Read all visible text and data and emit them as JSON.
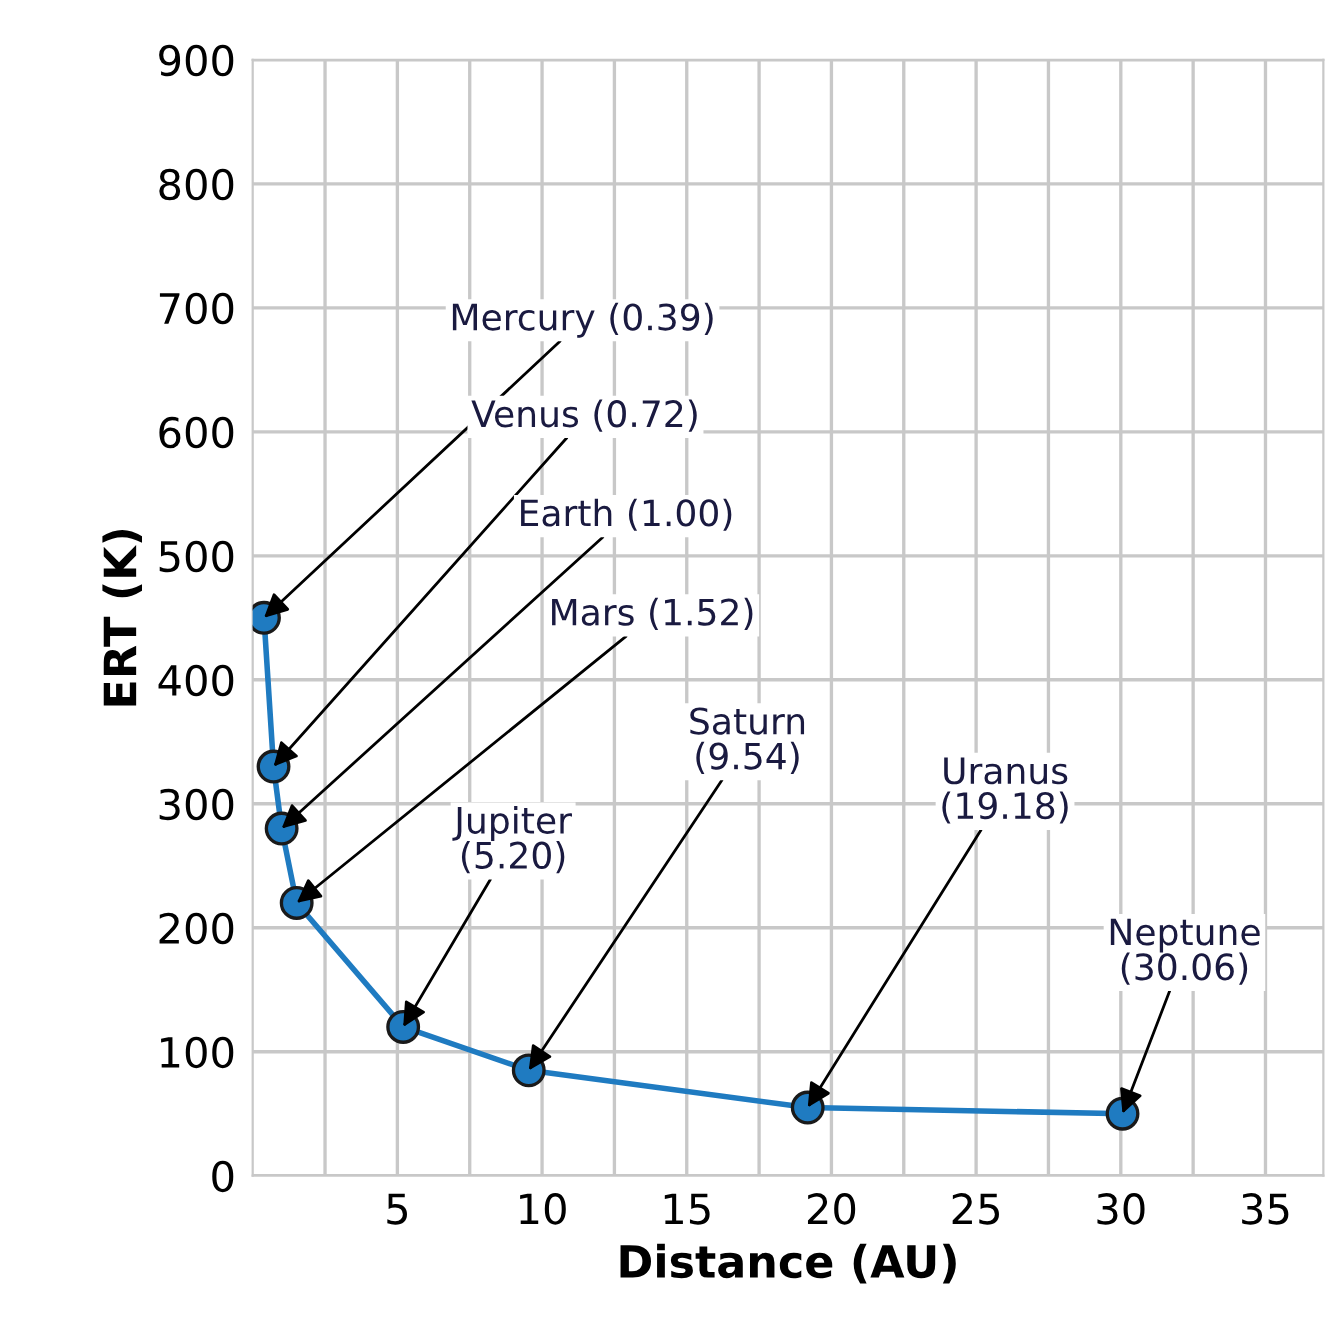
{
  "chart_data": {
    "type": "line",
    "xlabel": "Distance (AU)",
    "ylabel": "ERT (K)",
    "x": [
      0.39,
      0.72,
      1.0,
      1.52,
      5.2,
      9.54,
      19.18,
      30.06
    ],
    "series": [
      {
        "color": "#1f7bc1",
        "values": [
          450,
          330,
          280,
          220,
          120,
          85,
          55,
          50
        ]
      }
    ],
    "marker": "circle",
    "line_style": "solid",
    "grid": true,
    "xlim": [
      0,
      37
    ],
    "ylim": [
      0,
      900
    ],
    "xticks": [
      {
        "value": 2.5,
        "label": null
      },
      5,
      {
        "value": 7.5,
        "label": null
      },
      10,
      {
        "value": 12.5,
        "label": null
      },
      15,
      {
        "value": 17.5,
        "label": null
      },
      20,
      {
        "value": 22.5,
        "label": null
      },
      25,
      {
        "value": 27.5,
        "label": null
      },
      30,
      {
        "value": 32.5,
        "label": null
      },
      35
    ],
    "yticks": [
      0,
      100,
      200,
      300,
      400,
      500,
      600,
      700,
      800,
      900
    ],
    "annotations": [
      {
        "text": "Mercury (0.39)",
        "x": 0.39,
        "y": 450
      },
      {
        "text": "Venus (0.72)",
        "x": 0.72,
        "y": 330
      },
      {
        "text": "Earth (1.00)",
        "x": 1.0,
        "y": 280
      },
      {
        "text": "Mars (1.52)",
        "x": 1.52,
        "y": 220
      },
      {
        "text": "Jupiter\n(5.20)",
        "x": 5.2,
        "y": 120
      },
      {
        "text": "Saturn\n(9.54)",
        "x": 9.54,
        "y": 85
      },
      {
        "text": "Uranus\n(19.18)",
        "x": 19.18,
        "y": 55
      },
      {
        "text": "Neptune\n(30.06)",
        "x": 30.06,
        "y": 50
      }
    ]
  }
}
